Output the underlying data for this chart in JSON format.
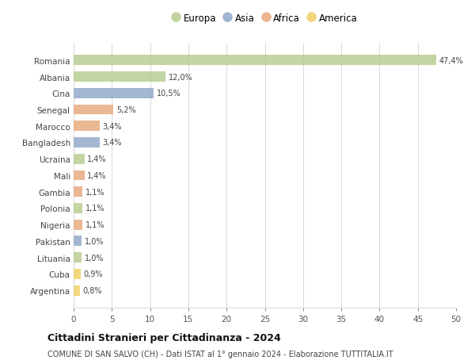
{
  "categories": [
    "Romania",
    "Albania",
    "Cina",
    "Senegal",
    "Marocco",
    "Bangladesh",
    "Ucraina",
    "Mali",
    "Gambia",
    "Polonia",
    "Nigeria",
    "Pakistan",
    "Lituania",
    "Cuba",
    "Argentina"
  ],
  "values": [
    47.4,
    12.0,
    10.5,
    5.2,
    3.4,
    3.4,
    1.4,
    1.4,
    1.1,
    1.1,
    1.1,
    1.0,
    1.0,
    0.9,
    0.8
  ],
  "labels": [
    "47,4%",
    "12,0%",
    "10,5%",
    "5,2%",
    "3,4%",
    "3,4%",
    "1,4%",
    "1,4%",
    "1,1%",
    "1,1%",
    "1,1%",
    "1,0%",
    "1,0%",
    "0,9%",
    "0,8%"
  ],
  "continent": [
    "Europa",
    "Europa",
    "Asia",
    "Africa",
    "Africa",
    "Asia",
    "Europa",
    "Africa",
    "Africa",
    "Europa",
    "Africa",
    "Asia",
    "Europa",
    "America",
    "America"
  ],
  "colors": {
    "Europa": "#b5cc8e",
    "Asia": "#8fa8c8",
    "Africa": "#e8a87c",
    "America": "#f0d060"
  },
  "legend_order": [
    "Europa",
    "Asia",
    "Africa",
    "America"
  ],
  "title": "Cittadini Stranieri per Cittadinanza - 2024",
  "subtitle": "COMUNE DI SAN SALVO (CH) - Dati ISTAT al 1° gennaio 2024 - Elaborazione TUTTITALIA.IT",
  "xlim": [
    0,
    50
  ],
  "xticks": [
    0,
    5,
    10,
    15,
    20,
    25,
    30,
    35,
    40,
    45,
    50
  ],
  "background_color": "#ffffff",
  "grid_color": "#d8d8d8"
}
